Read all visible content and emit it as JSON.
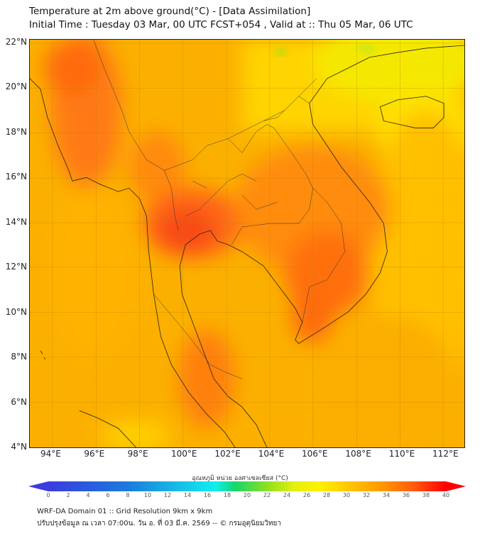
{
  "header": {
    "title": "Temperature at 2m above ground(°C) - [Data Assimilation]",
    "subtitle": "Initial Time : Tuesday 03 Mar, 00 UTC FCST+054 , Valid at :: Thu 05 Mar, 06 UTC"
  },
  "map": {
    "lat_labels": [
      "22°N",
      "20°N",
      "18°N",
      "16°N",
      "14°N",
      "12°N",
      "10°N",
      "8°N",
      "6°N",
      "4°N"
    ],
    "lon_labels": [
      "94°E",
      "96°E",
      "98°E",
      "100°E",
      "102°E",
      "104°E",
      "106°E",
      "108°E",
      "110°E",
      "112°E"
    ],
    "lat_values": [
      22,
      20,
      18,
      16,
      14,
      12,
      10,
      8,
      6,
      4
    ],
    "lon_values": [
      94,
      96,
      98,
      100,
      102,
      104,
      106,
      108,
      110,
      112
    ]
  },
  "colorbar": {
    "title": "อุณหภูมิ หน่วย องศาเซลเซียส (°C)",
    "ticks": [
      "0",
      "2",
      "4",
      "6",
      "8",
      "10",
      "12",
      "14",
      "16",
      "18",
      "20",
      "22",
      "24",
      "26",
      "28",
      "30",
      "32",
      "34",
      "36",
      "38",
      "40"
    ],
    "min": 0,
    "max": 40,
    "colors": [
      "#3b3bdf",
      "#1b7bdc",
      "#17b8e0",
      "#11eef0",
      "#18d66a",
      "#8de020",
      "#e6ef10",
      "#fff200",
      "#ffc400",
      "#ff9800",
      "#ff5a10",
      "#ff0000"
    ]
  },
  "footer": {
    "line1": "WRF-DA Domain 01 :: Grid Resolution 9km x 9km",
    "line2": "ปรับปรุงข้อมูล ณ เวลา 07:00น. วัน อ. ที่ 03 มี.ค. 2569 -- © กรมอุตุนิยมวิทยา"
  }
}
